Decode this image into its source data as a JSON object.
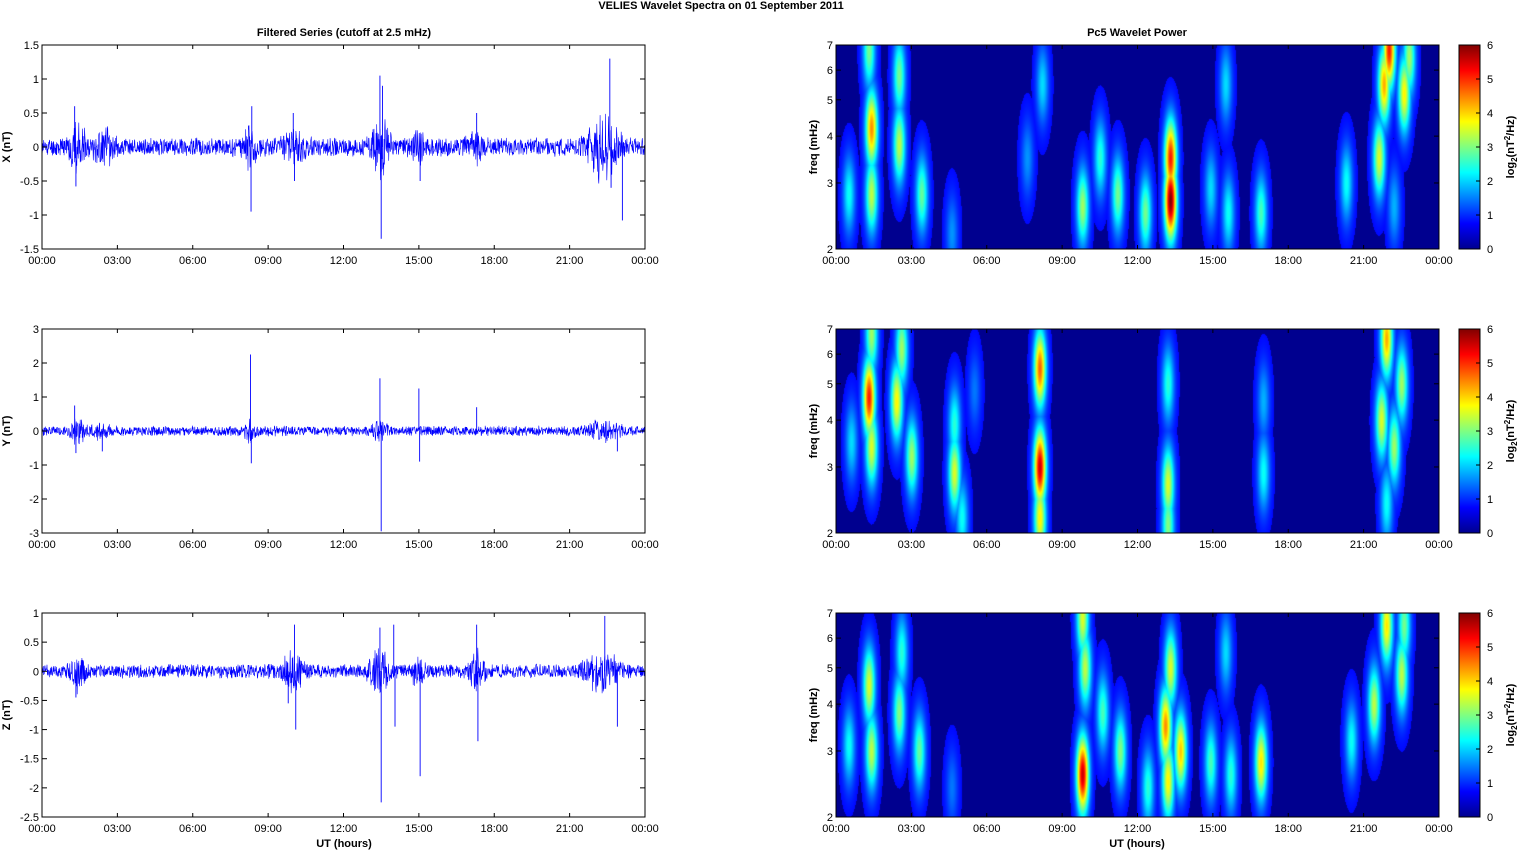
{
  "figure": {
    "title": "VELIES Wavelet Spectra on 01 September 2011",
    "left_title": "Filtered Series (cutoff at 2.5 mHz)",
    "right_title": "Pc5 Wavelet Power",
    "xlabel": "UT (hours)"
  },
  "colors": {
    "trace": "#0000ff",
    "axis": "#000000",
    "jet": [
      "#00008f",
      "#0000ff",
      "#0080ff",
      "#00ffff",
      "#80ff80",
      "#ffff00",
      "#ff8000",
      "#ff0000",
      "#800000"
    ]
  },
  "chart_data": [
    {
      "type": "line",
      "id": "x",
      "ylabel": "X (nT)",
      "ylim": [
        -1.5,
        1.5
      ],
      "yticks": [
        "-1.5",
        "-1",
        "-0.5",
        "0",
        "0.5",
        "1",
        "1.5"
      ],
      "ytick_values": [
        -1.5,
        -1,
        -0.5,
        0,
        0.5,
        1,
        1.5
      ],
      "xticks": [
        "00:00",
        "03:00",
        "06:00",
        "09:00",
        "12:00",
        "15:00",
        "18:00",
        "21:00",
        "00:00"
      ],
      "base_amplitude": 0.15,
      "seed": 11,
      "bursts": [
        {
          "t": 1.4,
          "w": 0.3,
          "a": 0.35
        },
        {
          "t": 2.5,
          "w": 0.4,
          "a": 0.2
        },
        {
          "t": 8.3,
          "w": 0.2,
          "a": 0.3
        },
        {
          "t": 10.0,
          "w": 0.4,
          "a": 0.2
        },
        {
          "t": 13.5,
          "w": 0.3,
          "a": 0.45
        },
        {
          "t": 15.0,
          "w": 0.3,
          "a": 0.2
        },
        {
          "t": 17.3,
          "w": 0.3,
          "a": 0.2
        },
        {
          "t": 22.3,
          "w": 0.6,
          "a": 0.45
        }
      ],
      "spikes": [
        {
          "t": 1.3,
          "v": 0.6
        },
        {
          "t": 1.35,
          "v": -0.58
        },
        {
          "t": 8.32,
          "v": -0.95
        },
        {
          "t": 8.35,
          "v": 0.6
        },
        {
          "t": 10.0,
          "v": 0.5
        },
        {
          "t": 10.05,
          "v": -0.5
        },
        {
          "t": 13.45,
          "v": 1.05
        },
        {
          "t": 13.5,
          "v": -1.35
        },
        {
          "t": 13.55,
          "v": 0.9
        },
        {
          "t": 15.05,
          "v": -0.5
        },
        {
          "t": 17.3,
          "v": 0.5
        },
        {
          "t": 22.6,
          "v": 1.3
        },
        {
          "t": 22.65,
          "v": -0.6
        },
        {
          "t": 23.1,
          "v": -1.08
        }
      ]
    },
    {
      "type": "line",
      "id": "y",
      "ylabel": "Y (nT)",
      "ylim": [
        -3,
        3
      ],
      "yticks": [
        "-3",
        "-2",
        "-1",
        "0",
        "1",
        "2",
        "3"
      ],
      "ytick_values": [
        -3,
        -2,
        -1,
        0,
        1,
        2,
        3
      ],
      "xticks": [
        "00:00",
        "03:00",
        "06:00",
        "09:00",
        "12:00",
        "15:00",
        "18:00",
        "21:00",
        "00:00"
      ],
      "base_amplitude": 0.16,
      "seed": 23,
      "bursts": [
        {
          "t": 1.4,
          "w": 0.3,
          "a": 0.35
        },
        {
          "t": 2.4,
          "w": 0.4,
          "a": 0.2
        },
        {
          "t": 8.3,
          "w": 0.2,
          "a": 0.3
        },
        {
          "t": 13.4,
          "w": 0.3,
          "a": 0.3
        },
        {
          "t": 22.3,
          "w": 0.6,
          "a": 0.3
        }
      ],
      "spikes": [
        {
          "t": 1.3,
          "v": 0.75
        },
        {
          "t": 1.35,
          "v": -0.65
        },
        {
          "t": 2.4,
          "v": -0.6
        },
        {
          "t": 8.3,
          "v": 2.25
        },
        {
          "t": 8.33,
          "v": -0.95
        },
        {
          "t": 13.45,
          "v": 1.55
        },
        {
          "t": 13.5,
          "v": -2.95
        },
        {
          "t": 15.0,
          "v": 1.25
        },
        {
          "t": 15.03,
          "v": -0.9
        },
        {
          "t": 17.3,
          "v": 0.7
        },
        {
          "t": 22.9,
          "v": -0.6
        }
      ]
    },
    {
      "type": "line",
      "id": "z",
      "ylabel": "Z (nT)",
      "ylim": [
        -2.5,
        1
      ],
      "yticks": [
        "-2.5",
        "-2",
        "-1.5",
        "-1",
        "-0.5",
        "0",
        "0.5",
        "1"
      ],
      "ytick_values": [
        -2.5,
        -2,
        -1.5,
        -1,
        -0.5,
        0,
        0.5,
        1
      ],
      "xticks": [
        "00:00",
        "03:00",
        "06:00",
        "09:00",
        "12:00",
        "15:00",
        "18:00",
        "21:00",
        "00:00"
      ],
      "base_amplitude": 0.13,
      "seed": 37,
      "bursts": [
        {
          "t": 1.4,
          "w": 0.3,
          "a": 0.3
        },
        {
          "t": 10.0,
          "w": 0.4,
          "a": 0.3
        },
        {
          "t": 13.4,
          "w": 0.4,
          "a": 0.35
        },
        {
          "t": 15.0,
          "w": 0.3,
          "a": 0.2
        },
        {
          "t": 17.3,
          "w": 0.3,
          "a": 0.3
        },
        {
          "t": 22.3,
          "w": 0.6,
          "a": 0.35
        }
      ],
      "spikes": [
        {
          "t": 1.35,
          "v": -0.45
        },
        {
          "t": 9.8,
          "v": -0.55
        },
        {
          "t": 10.05,
          "v": 0.8
        },
        {
          "t": 10.1,
          "v": -1.0
        },
        {
          "t": 13.45,
          "v": 0.75
        },
        {
          "t": 13.5,
          "v": -2.25
        },
        {
          "t": 14.0,
          "v": 0.8
        },
        {
          "t": 14.05,
          "v": -0.95
        },
        {
          "t": 15.05,
          "v": -1.8
        },
        {
          "t": 17.3,
          "v": 0.8
        },
        {
          "t": 17.35,
          "v": -1.2
        },
        {
          "t": 22.4,
          "v": 0.95
        },
        {
          "t": 22.9,
          "v": -0.95
        }
      ]
    },
    {
      "type": "heatmap",
      "id": "px",
      "ylabel": "freq (mHz)",
      "ylim": [
        2,
        7
      ],
      "yscale": "log",
      "yticks": [
        "2",
        "3",
        "4",
        "5",
        "6",
        "7"
      ],
      "ytick_values": [
        2,
        3,
        4,
        5,
        6,
        7
      ],
      "xticks": [
        "00:00",
        "03:00",
        "06:00",
        "09:00",
        "12:00",
        "15:00",
        "18:00",
        "21:00",
        "00:00"
      ],
      "colorbar_label": "log",
      "colorbar_sub": "2",
      "colorbar_label_rest": "(nT",
      "colorbar_sup": "2",
      "colorbar_label_end": "/Hz)",
      "clim": [
        0,
        6
      ],
      "cticks": [
        "0",
        "1",
        "2",
        "3",
        "4",
        "5",
        "6"
      ],
      "blobs": [
        {
          "t": 0.5,
          "f": 2.8,
          "p": 1.8
        },
        {
          "t": 1.4,
          "f": 4.2,
          "p": 4.2
        },
        {
          "t": 1.4,
          "f": 2.8,
          "p": 3.0
        },
        {
          "t": 1.3,
          "f": 6.8,
          "p": 2.5
        },
        {
          "t": 2.5,
          "f": 3.8,
          "p": 3.0
        },
        {
          "t": 2.5,
          "f": 5.8,
          "p": 2.5
        },
        {
          "t": 3.4,
          "f": 2.8,
          "p": 2.4
        },
        {
          "t": 4.6,
          "f": 2.2,
          "p": 1.0
        },
        {
          "t": 7.6,
          "f": 3.5,
          "p": 1.0
        },
        {
          "t": 8.2,
          "f": 5.5,
          "p": 1.5
        },
        {
          "t": 9.8,
          "f": 2.6,
          "p": 2.8
        },
        {
          "t": 10.5,
          "f": 3.5,
          "p": 2.0
        },
        {
          "t": 11.2,
          "f": 2.8,
          "p": 2.5
        },
        {
          "t": 12.3,
          "f": 2.5,
          "p": 2.5
        },
        {
          "t": 13.3,
          "f": 2.7,
          "p": 6.0
        },
        {
          "t": 13.3,
          "f": 3.5,
          "p": 5.0
        },
        {
          "t": 14.9,
          "f": 2.9,
          "p": 1.5
        },
        {
          "t": 15.5,
          "f": 5.5,
          "p": 1.5
        },
        {
          "t": 15.6,
          "f": 2.5,
          "p": 1.8
        },
        {
          "t": 16.9,
          "f": 2.5,
          "p": 2.2
        },
        {
          "t": 20.3,
          "f": 3.0,
          "p": 1.8
        },
        {
          "t": 21.6,
          "f": 3.5,
          "p": 3.2
        },
        {
          "t": 21.8,
          "f": 5.5,
          "p": 4.0
        },
        {
          "t": 22.0,
          "f": 6.8,
          "p": 5.0
        },
        {
          "t": 22.6,
          "f": 5.2,
          "p": 3.5
        },
        {
          "t": 22.8,
          "f": 6.5,
          "p": 2.8
        },
        {
          "t": 22.2,
          "f": 2.6,
          "p": 1.2
        }
      ]
    },
    {
      "type": "heatmap",
      "id": "py",
      "ylabel": "freq (mHz)",
      "ylim": [
        2,
        7
      ],
      "yscale": "log",
      "yticks": [
        "2",
        "3",
        "4",
        "5",
        "6",
        "7"
      ],
      "ytick_values": [
        2,
        3,
        4,
        5,
        6,
        7
      ],
      "xticks": [
        "00:00",
        "03:00",
        "06:00",
        "09:00",
        "12:00",
        "15:00",
        "18:00",
        "21:00",
        "00:00"
      ],
      "colorbar_label": "log",
      "colorbar_sub": "2",
      "colorbar_label_rest": "(nT",
      "colorbar_sup": "2",
      "colorbar_label_end": "/Hz)",
      "clim": [
        0,
        6
      ],
      "cticks": [
        "0",
        "1",
        "2",
        "3",
        "4",
        "5",
        "6"
      ],
      "blobs": [
        {
          "t": 0.6,
          "f": 3.5,
          "p": 1.5
        },
        {
          "t": 1.3,
          "f": 4.6,
          "p": 5.0
        },
        {
          "t": 1.4,
          "f": 3.4,
          "p": 3.2
        },
        {
          "t": 1.4,
          "f": 6.8,
          "p": 2.8
        },
        {
          "t": 2.4,
          "f": 4.5,
          "p": 3.5
        },
        {
          "t": 2.6,
          "f": 6.2,
          "p": 2.8
        },
        {
          "t": 3.0,
          "f": 3.2,
          "p": 2.8
        },
        {
          "t": 4.7,
          "f": 2.9,
          "p": 3.2
        },
        {
          "t": 4.7,
          "f": 3.9,
          "p": 2.0
        },
        {
          "t": 5.0,
          "f": 2.2,
          "p": 1.8
        },
        {
          "t": 5.5,
          "f": 4.8,
          "p": 0.8
        },
        {
          "t": 8.1,
          "f": 3.0,
          "p": 5.5
        },
        {
          "t": 8.1,
          "f": 5.5,
          "p": 4.5
        },
        {
          "t": 8.1,
          "f": 2.2,
          "p": 3.5
        },
        {
          "t": 13.2,
          "f": 2.7,
          "p": 3.2
        },
        {
          "t": 13.2,
          "f": 5.0,
          "p": 2.0
        },
        {
          "t": 13.2,
          "f": 2.1,
          "p": 2.6
        },
        {
          "t": 17.0,
          "f": 2.9,
          "p": 1.8
        },
        {
          "t": 17.0,
          "f": 4.5,
          "p": 1.2
        },
        {
          "t": 21.7,
          "f": 4.0,
          "p": 3.2
        },
        {
          "t": 21.9,
          "f": 6.6,
          "p": 4.0
        },
        {
          "t": 22.2,
          "f": 3.4,
          "p": 2.8
        },
        {
          "t": 22.5,
          "f": 5.0,
          "p": 2.8
        },
        {
          "t": 21.9,
          "f": 2.4,
          "p": 1.8
        }
      ]
    },
    {
      "type": "heatmap",
      "id": "pz",
      "ylabel": "freq (mHz)",
      "ylim": [
        2,
        7
      ],
      "yscale": "log",
      "yticks": [
        "2",
        "3",
        "4",
        "5",
        "6",
        "7"
      ],
      "ytick_values": [
        2,
        3,
        4,
        5,
        6,
        7
      ],
      "xticks": [
        "00:00",
        "03:00",
        "06:00",
        "09:00",
        "12:00",
        "15:00",
        "18:00",
        "21:00",
        "00:00"
      ],
      "colorbar_label": "log",
      "colorbar_sub": "2",
      "colorbar_label_rest": "(nT",
      "colorbar_sup": "2",
      "colorbar_label_end": "/Hz)",
      "clim": [
        0,
        6
      ],
      "cticks": [
        "0",
        "1",
        "2",
        "3",
        "4",
        "5",
        "6"
      ],
      "blobs": [
        {
          "t": 0.5,
          "f": 3.1,
          "p": 1.8
        },
        {
          "t": 1.3,
          "f": 4.5,
          "p": 3.2
        },
        {
          "t": 1.4,
          "f": 3.0,
          "p": 3.0
        },
        {
          "t": 2.5,
          "f": 3.8,
          "p": 2.6
        },
        {
          "t": 2.6,
          "f": 5.5,
          "p": 2.0
        },
        {
          "t": 3.3,
          "f": 3.0,
          "p": 2.4
        },
        {
          "t": 4.6,
          "f": 2.4,
          "p": 0.8
        },
        {
          "t": 9.8,
          "f": 2.6,
          "p": 5.5
        },
        {
          "t": 9.9,
          "f": 5.0,
          "p": 3.0
        },
        {
          "t": 9.8,
          "f": 6.8,
          "p": 3.2
        },
        {
          "t": 10.6,
          "f": 3.8,
          "p": 2.2
        },
        {
          "t": 11.3,
          "f": 3.0,
          "p": 2.6
        },
        {
          "t": 12.4,
          "f": 2.4,
          "p": 2.0
        },
        {
          "t": 13.1,
          "f": 3.5,
          "p": 4.2
        },
        {
          "t": 13.2,
          "f": 2.5,
          "p": 3.5
        },
        {
          "t": 13.7,
          "f": 3.0,
          "p": 3.8
        },
        {
          "t": 13.3,
          "f": 5.0,
          "p": 3.2
        },
        {
          "t": 14.9,
          "f": 2.8,
          "p": 2.2
        },
        {
          "t": 15.5,
          "f": 5.5,
          "p": 1.5
        },
        {
          "t": 15.7,
          "f": 2.6,
          "p": 2.0
        },
        {
          "t": 16.9,
          "f": 2.8,
          "p": 3.6
        },
        {
          "t": 20.5,
          "f": 3.2,
          "p": 1.8
        },
        {
          "t": 21.4,
          "f": 4.0,
          "p": 3.0
        },
        {
          "t": 21.9,
          "f": 6.5,
          "p": 3.6
        },
        {
          "t": 22.5,
          "f": 4.8,
          "p": 3.0
        },
        {
          "t": 22.6,
          "f": 6.5,
          "p": 2.5
        }
      ]
    }
  ]
}
